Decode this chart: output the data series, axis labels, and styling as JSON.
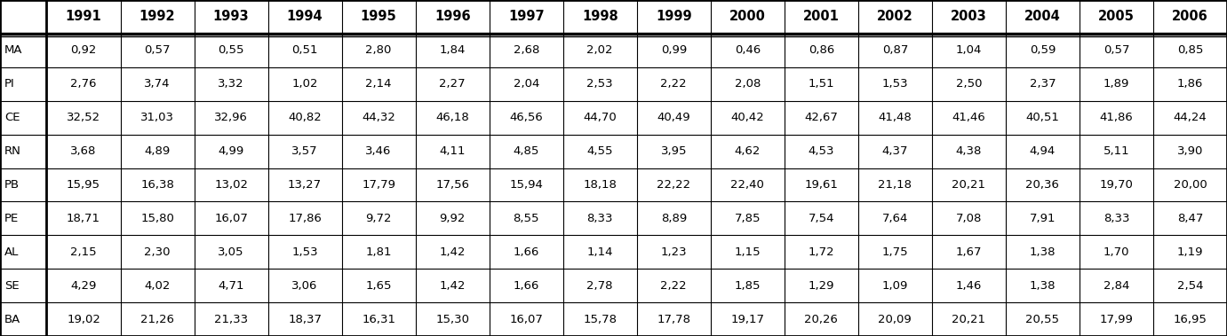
{
  "columns": [
    "",
    "1991",
    "1992",
    "1993",
    "1994",
    "1995",
    "1996",
    "1997",
    "1998",
    "1999",
    "2000",
    "2001",
    "2002",
    "2003",
    "2004",
    "2005",
    "2006"
  ],
  "rows": [
    [
      "MA",
      "0,92",
      "0,57",
      "0,55",
      "0,51",
      "2,80",
      "1,84",
      "2,68",
      "2,02",
      "0,99",
      "0,46",
      "0,86",
      "0,87",
      "1,04",
      "0,59",
      "0,57",
      "0,85"
    ],
    [
      "PI",
      "2,76",
      "3,74",
      "3,32",
      "1,02",
      "2,14",
      "2,27",
      "2,04",
      "2,53",
      "2,22",
      "2,08",
      "1,51",
      "1,53",
      "2,50",
      "2,37",
      "1,89",
      "1,86"
    ],
    [
      "CE",
      "32,52",
      "31,03",
      "32,96",
      "40,82",
      "44,32",
      "46,18",
      "46,56",
      "44,70",
      "40,49",
      "40,42",
      "42,67",
      "41,48",
      "41,46",
      "40,51",
      "41,86",
      "44,24"
    ],
    [
      "RN",
      "3,68",
      "4,89",
      "4,99",
      "3,57",
      "3,46",
      "4,11",
      "4,85",
      "4,55",
      "3,95",
      "4,62",
      "4,53",
      "4,37",
      "4,38",
      "4,94",
      "5,11",
      "3,90"
    ],
    [
      "PB",
      "15,95",
      "16,38",
      "13,02",
      "13,27",
      "17,79",
      "17,56",
      "15,94",
      "18,18",
      "22,22",
      "22,40",
      "19,61",
      "21,18",
      "20,21",
      "20,36",
      "19,70",
      "20,00"
    ],
    [
      "PE",
      "18,71",
      "15,80",
      "16,07",
      "17,86",
      "9,72",
      "9,92",
      "8,55",
      "8,33",
      "8,89",
      "7,85",
      "7,54",
      "7,64",
      "7,08",
      "7,91",
      "8,33",
      "8,47"
    ],
    [
      "AL",
      "2,15",
      "2,30",
      "3,05",
      "1,53",
      "1,81",
      "1,42",
      "1,66",
      "1,14",
      "1,23",
      "1,15",
      "1,72",
      "1,75",
      "1,67",
      "1,38",
      "1,70",
      "1,19"
    ],
    [
      "SE",
      "4,29",
      "4,02",
      "4,71",
      "3,06",
      "1,65",
      "1,42",
      "1,66",
      "2,78",
      "2,22",
      "1,85",
      "1,29",
      "1,09",
      "1,46",
      "1,38",
      "2,84",
      "2,54"
    ],
    [
      "BA",
      "19,02",
      "21,26",
      "21,33",
      "18,37",
      "16,31",
      "15,30",
      "16,07",
      "15,78",
      "17,78",
      "19,17",
      "20,26",
      "20,09",
      "20,21",
      "20,55",
      "17,99",
      "16,95"
    ]
  ],
  "header_bg": "#ffffff",
  "header_text_color": "#000000",
  "cell_bg": "#ffffff",
  "cell_text_color": "#000000",
  "font_size": 9.5,
  "header_font_size": 10.5,
  "line_color": "#000000",
  "fig_width": 13.81,
  "fig_height": 3.79
}
